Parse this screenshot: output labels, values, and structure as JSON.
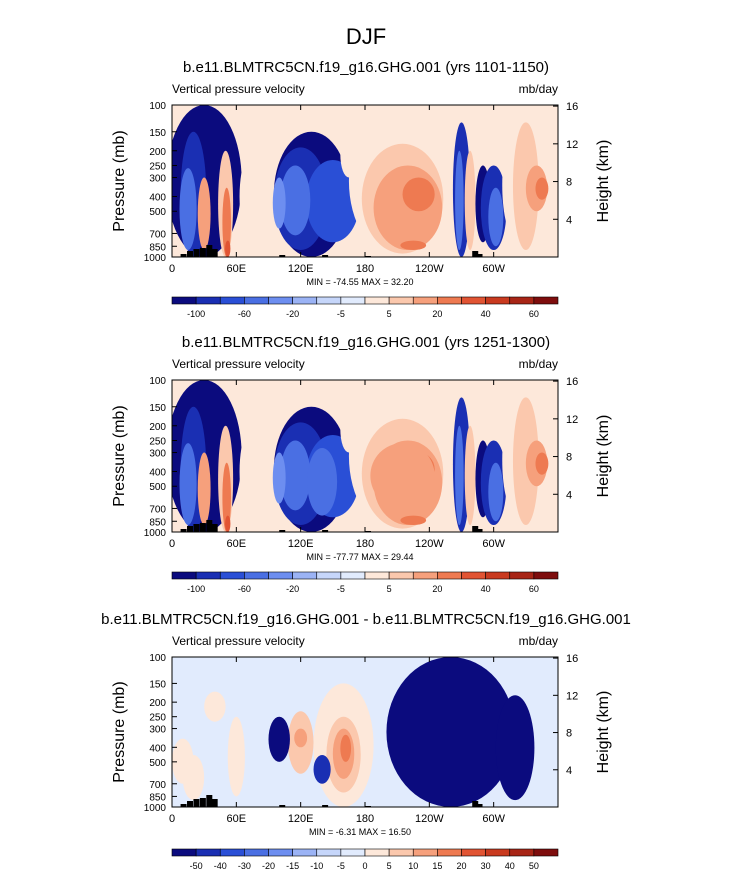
{
  "figure": {
    "title": "DJF"
  },
  "colors": {
    "neg": [
      "#0b0b7e",
      "#1a2fb3",
      "#2a4fd6",
      "#4a6fe3",
      "#6d8ef0",
      "#9bb3f5",
      "#c6d6fa",
      "#e1ebfd"
    ],
    "pos": [
      "#fde8da",
      "#fbc8ad",
      "#f6a07c",
      "#ee7a51",
      "#e15433",
      "#c93a1f",
      "#a82516",
      "#7e0d0d"
    ]
  },
  "chart_data": [
    {
      "type": "heatmap",
      "title": "b.e11.BLMTRC5CN.f19_g16.GHG.001 (yrs 1101-1150)",
      "left_label": "Vertical pressure velocity",
      "right_label": "mb/day",
      "xlabel": "",
      "ylabel": "Pressure (mb)",
      "ylabel_right": "Height (km)",
      "x_ticks": [
        "0",
        "60E",
        "120E",
        "180",
        "120W",
        "60W"
      ],
      "y_ticks": [
        "100",
        "150",
        "200",
        "250",
        "300",
        "400",
        "500",
        "700",
        "850",
        "1000"
      ],
      "y_ticks_right": [
        "4",
        "8",
        "12",
        "16"
      ],
      "min_max_text": "MIN = -74.55   MAX =  32.20",
      "levels": [
        "-100",
        "-60",
        "-20",
        "-5",
        "5",
        "20",
        "40",
        "60"
      ],
      "grid": false,
      "legend": "bottom colorbar"
    },
    {
      "type": "heatmap",
      "title": "b.e11.BLMTRC5CN.f19_g16.GHG.001 (yrs 1251-1300)",
      "left_label": "Vertical pressure velocity",
      "right_label": "mb/day",
      "xlabel": "",
      "ylabel": "Pressure (mb)",
      "ylabel_right": "Height (km)",
      "x_ticks": [
        "0",
        "60E",
        "120E",
        "180",
        "120W",
        "60W"
      ],
      "y_ticks": [
        "100",
        "150",
        "200",
        "250",
        "300",
        "400",
        "500",
        "700",
        "850",
        "1000"
      ],
      "y_ticks_right": [
        "4",
        "8",
        "12",
        "16"
      ],
      "min_max_text": "MIN = -77.77   MAX =  29.44",
      "levels": [
        "-100",
        "-60",
        "-20",
        "-5",
        "5",
        "20",
        "40",
        "60"
      ],
      "grid": false,
      "legend": "bottom colorbar"
    },
    {
      "type": "heatmap",
      "title": "b.e11.BLMTRC5CN.f19_g16.GHG.001 - b.e11.BLMTRC5CN.f19_g16.GHG.001",
      "left_label": "Vertical pressure velocity",
      "right_label": "mb/day",
      "xlabel": "",
      "ylabel": "Pressure (mb)",
      "ylabel_right": "Height (km)",
      "x_ticks": [
        "0",
        "60E",
        "120E",
        "180",
        "120W",
        "60W"
      ],
      "y_ticks": [
        "100",
        "150",
        "200",
        "250",
        "300",
        "400",
        "500",
        "700",
        "850",
        "1000"
      ],
      "y_ticks_right": [
        "4",
        "8",
        "12",
        "16"
      ],
      "min_max_text": "MIN =  -6.31   MAX =  16.50",
      "levels": [
        "-50",
        "-40",
        "-30",
        "-20",
        "-15",
        "-10",
        "-5",
        "0",
        "5",
        "10",
        "15",
        "20",
        "30",
        "40",
        "50"
      ],
      "grid": false,
      "legend": "bottom colorbar"
    }
  ]
}
